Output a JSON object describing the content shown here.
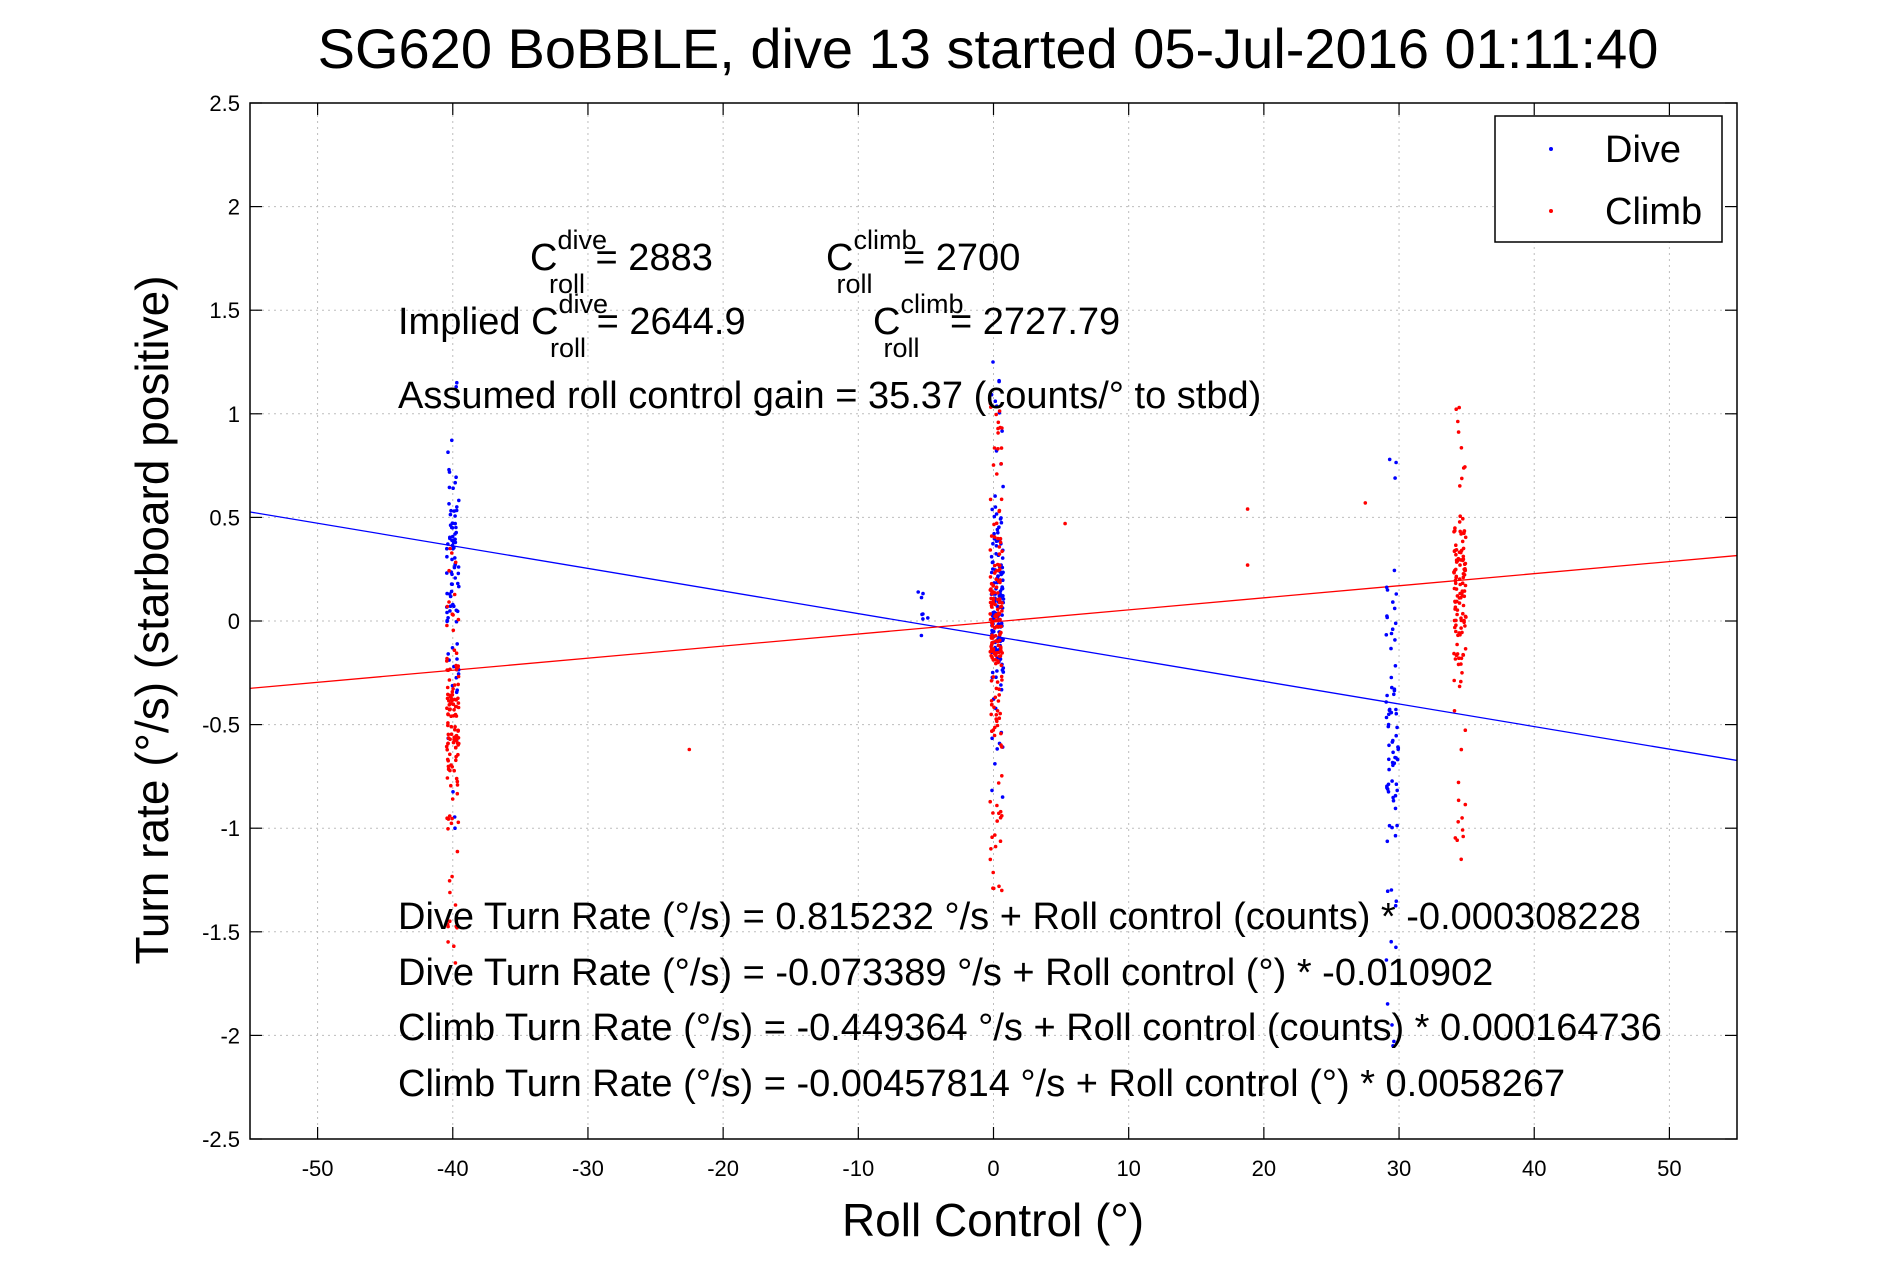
{
  "chart_data": {
    "type": "scatter",
    "title": "SG620 BoBBLE, dive 13 started 05-Jul-2016 01:11:40",
    "xlabel": "Roll Control (°)",
    "ylabel": "Turn rate (°/s)  (starboard positive)",
    "xlim": [
      -55,
      55
    ],
    "ylim": [
      -2.5,
      2.5
    ],
    "xticks": [
      "-50",
      "-40",
      "-30",
      "-20",
      "-10",
      "0",
      "10",
      "20",
      "30",
      "40",
      "50"
    ],
    "yticks": [
      "2.5",
      "2",
      "1.5",
      "1",
      "0.5",
      "0",
      "-0.5",
      "-1",
      "-1.5",
      "-2",
      "-2.5"
    ],
    "grid": true,
    "legend_position": "top-right",
    "series": [
      {
        "name": "Dive",
        "color": "#0000ff",
        "clusters": [
          {
            "x": -40.0,
            "y_min": -1.0,
            "y_max": 1.15,
            "y_center": 0.3,
            "count": 90
          },
          {
            "x": -5.2,
            "y_min": -0.07,
            "y_max": 0.14,
            "y_center": 0.03,
            "count": 8
          },
          {
            "x": 0.3,
            "y_min": -0.85,
            "y_max": 1.25,
            "y_center": 0.05,
            "count": 150
          },
          {
            "x": 29.5,
            "y_min": -2.05,
            "y_max": 0.78,
            "y_center": -0.5,
            "count": 80
          }
        ]
      },
      {
        "name": "Climb",
        "color": "#ff0000",
        "clusters": [
          {
            "x": -40.0,
            "y_min": -1.65,
            "y_max": 0.35,
            "y_center": -0.45,
            "count": 130
          },
          {
            "x": 0.2,
            "y_min": -1.3,
            "y_max": 1.05,
            "y_center": -0.1,
            "count": 180
          },
          {
            "x": 34.5,
            "y_min": -1.15,
            "y_max": 1.03,
            "y_center": 0.2,
            "count": 130
          }
        ],
        "outliers": [
          [
            -22.5,
            -0.62
          ],
          [
            5.3,
            0.47
          ],
          [
            18.8,
            0.54
          ],
          [
            18.8,
            0.27
          ],
          [
            27.5,
            0.57
          ]
        ]
      }
    ],
    "fit_lines": [
      {
        "name": "Dive fit",
        "color": "#0000ff",
        "slope": -0.010902,
        "intercept": -0.073389
      },
      {
        "name": "Climb fit",
        "color": "#ff0000",
        "slope": 0.0058267,
        "intercept": -0.00457814
      }
    ]
  },
  "annotations": {
    "c_roll_dive": {
      "base": "C",
      "sup": "dive",
      "sub": "roll",
      "rest": " = 2883"
    },
    "c_roll_climb": {
      "base": "C",
      "sup": "climb",
      "sub": "roll",
      "rest": " = 2700"
    },
    "implied_prefix": "Implied ",
    "implied_dive": {
      "base": "C",
      "sup": "dive",
      "sub": "roll",
      "rest": " = 2644.9"
    },
    "implied_climb": {
      "base": "C",
      "sup": "climb",
      "sub": "roll",
      "rest": " = 2727.79"
    },
    "gain": "Assumed roll control gain = 35.37 (counts/° to stbd)",
    "equations": [
      "Dive Turn Rate (°/s) = 0.815232 °/s + Roll control (counts) * -0.000308228",
      "Dive Turn Rate (°/s) = -0.073389 °/s + Roll control (°) * -0.010902",
      "Climb Turn Rate (°/s) = -0.449364 °/s + Roll control (counts) * 0.000164736",
      "Climb Turn Rate (°/s) = -0.00457814 °/s + Roll control (°) * 0.0058267"
    ]
  }
}
